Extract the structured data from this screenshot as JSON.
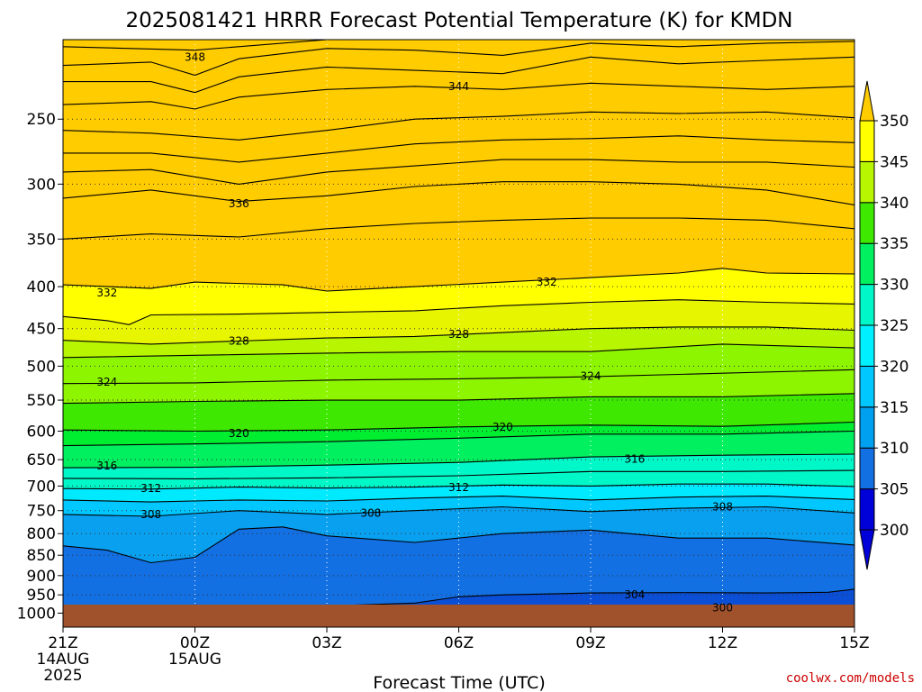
{
  "chart_data": {
    "type": "contour",
    "title": "2025081421 HRRR Forecast Potential Temperature (K) for KMDN",
    "xlabel": "Forecast Time (UTC)",
    "ylabel": "",
    "y_scale": "log",
    "ylim": [
      1040,
      200
    ],
    "x_ticks": [
      {
        "h": 0,
        "lines": [
          "21Z",
          "14AUG",
          "2025"
        ]
      },
      {
        "h": 3,
        "lines": [
          "00Z",
          "15AUG"
        ]
      },
      {
        "h": 6,
        "lines": [
          "03Z"
        ]
      },
      {
        "h": 9,
        "lines": [
          "06Z"
        ]
      },
      {
        "h": 12,
        "lines": [
          "09Z"
        ]
      },
      {
        "h": 15,
        "lines": [
          "12Z"
        ]
      },
      {
        "h": 18,
        "lines": [
          "15Z"
        ]
      }
    ],
    "y_ticks": [
      250,
      300,
      350,
      400,
      450,
      500,
      550,
      600,
      650,
      700,
      750,
      800,
      850,
      900,
      950,
      1000
    ],
    "colorbar": {
      "levels": [
        "300",
        "305",
        "310",
        "315",
        "320",
        "325",
        "330",
        "335",
        "340",
        "345",
        "350"
      ],
      "colors": [
        "#0000d8",
        "#0b4fd6",
        "#1370e3",
        "#0aa0f0",
        "#00c8ff",
        "#00eaff",
        "#00f7c8",
        "#00f060",
        "#00ee30",
        "#3ee800",
        "#8ef500",
        "#b8f500",
        "#e8f500",
        "#ffff00",
        "#ffcc00"
      ]
    },
    "contour_interval": 2,
    "contour_labels": [
      {
        "value": "348",
        "h": 3.0,
        "p": 210
      },
      {
        "value": "344",
        "h": 9.0,
        "p": 228
      },
      {
        "value": "336",
        "h": 4.0,
        "p": 317
      },
      {
        "value": "332",
        "h": 1.0,
        "p": 407
      },
      {
        "value": "332",
        "h": 11.0,
        "p": 395
      },
      {
        "value": "328",
        "h": 4.0,
        "p": 466
      },
      {
        "value": "328",
        "h": 9.0,
        "p": 457
      },
      {
        "value": "324",
        "h": 1.0,
        "p": 523
      },
      {
        "value": "324",
        "h": 12.0,
        "p": 514
      },
      {
        "value": "320",
        "h": 4.0,
        "p": 604
      },
      {
        "value": "320",
        "h": 10.0,
        "p": 593
      },
      {
        "value": "316",
        "h": 1.0,
        "p": 661
      },
      {
        "value": "316",
        "h": 13.0,
        "p": 649
      },
      {
        "value": "312",
        "h": 2.0,
        "p": 705
      },
      {
        "value": "312",
        "h": 9.0,
        "p": 703
      },
      {
        "value": "308",
        "h": 2.0,
        "p": 758
      },
      {
        "value": "308",
        "h": 7.0,
        "p": 755
      },
      {
        "value": "308",
        "h": 15.0,
        "p": 742
      },
      {
        "value": "304",
        "h": 13.0,
        "p": 950
      },
      {
        "value": "300",
        "h": 15.0,
        "p": 985
      }
    ],
    "contours": [
      {
        "t": 304,
        "pts": [
          [
            3.6,
            985
          ],
          [
            6,
            980
          ],
          [
            8,
            972
          ],
          [
            9,
            955
          ],
          [
            10,
            950
          ],
          [
            12,
            945
          ],
          [
            14,
            944
          ],
          [
            16,
            945
          ],
          [
            17.4,
            943
          ],
          [
            18,
            935
          ]
        ]
      },
      {
        "t": 306,
        "pts": [
          [
            0,
            828
          ],
          [
            1,
            838
          ],
          [
            2,
            868
          ],
          [
            3,
            855
          ],
          [
            4,
            790
          ],
          [
            5,
            785
          ],
          [
            6,
            805
          ],
          [
            8,
            820
          ],
          [
            10,
            800
          ],
          [
            12,
            792
          ],
          [
            14,
            810
          ],
          [
            16,
            810
          ],
          [
            18,
            826
          ]
        ]
      },
      {
        "t": 308,
        "pts": [
          [
            0,
            758
          ],
          [
            2,
            762
          ],
          [
            4,
            750
          ],
          [
            6,
            758
          ],
          [
            8,
            750
          ],
          [
            10,
            742
          ],
          [
            12,
            752
          ],
          [
            14,
            745
          ],
          [
            16,
            742
          ],
          [
            18,
            755
          ]
        ]
      },
      {
        "t": 310,
        "pts": [
          [
            0,
            728
          ],
          [
            2,
            732
          ],
          [
            4,
            728
          ],
          [
            6,
            730
          ],
          [
            8,
            724
          ],
          [
            10,
            720
          ],
          [
            12,
            728
          ],
          [
            14,
            722
          ],
          [
            16,
            720
          ],
          [
            18,
            727
          ]
        ]
      },
      {
        "t": 312,
        "pts": [
          [
            0,
            705
          ],
          [
            2,
            706
          ],
          [
            4,
            702
          ],
          [
            6,
            704
          ],
          [
            8,
            702
          ],
          [
            10,
            698
          ],
          [
            12,
            700
          ],
          [
            14,
            696
          ],
          [
            16,
            696
          ],
          [
            18,
            701
          ]
        ]
      },
      {
        "t": 314,
        "pts": [
          [
            0,
            685
          ],
          [
            3,
            686
          ],
          [
            6,
            684
          ],
          [
            9,
            680
          ],
          [
            12,
            672
          ],
          [
            15,
            672
          ],
          [
            18,
            670
          ]
        ]
      },
      {
        "t": 316,
        "pts": [
          [
            0,
            665
          ],
          [
            3,
            664
          ],
          [
            6,
            660
          ],
          [
            9,
            655
          ],
          [
            12,
            645
          ],
          [
            15,
            642
          ],
          [
            18,
            640
          ]
        ]
      },
      {
        "t": 318,
        "pts": [
          [
            0,
            625
          ],
          [
            3,
            622
          ],
          [
            6,
            618
          ],
          [
            9,
            612
          ],
          [
            12,
            605
          ],
          [
            15,
            605
          ],
          [
            18,
            600
          ]
        ]
      },
      {
        "t": 320,
        "pts": [
          [
            0,
            598
          ],
          [
            3,
            600
          ],
          [
            6,
            598
          ],
          [
            9,
            593
          ],
          [
            12,
            590
          ],
          [
            15,
            592
          ],
          [
            18,
            585
          ]
        ]
      },
      {
        "t": 322,
        "pts": [
          [
            0,
            555
          ],
          [
            3,
            552
          ],
          [
            6,
            550
          ],
          [
            9,
            550
          ],
          [
            12,
            545
          ],
          [
            15,
            545
          ],
          [
            18,
            540
          ]
        ]
      },
      {
        "t": 324,
        "pts": [
          [
            0,
            525
          ],
          [
            3,
            524
          ],
          [
            6,
            520
          ],
          [
            9,
            518
          ],
          [
            12,
            515
          ],
          [
            15,
            510
          ],
          [
            18,
            505
          ]
        ]
      },
      {
        "t": 326,
        "pts": [
          [
            0,
            488
          ],
          [
            3,
            485
          ],
          [
            6,
            482
          ],
          [
            9,
            480
          ],
          [
            12,
            480
          ],
          [
            15,
            470
          ],
          [
            18,
            475
          ]
        ]
      },
      {
        "t": 328,
        "pts": [
          [
            0,
            465
          ],
          [
            2,
            470
          ],
          [
            4,
            466
          ],
          [
            6,
            462
          ],
          [
            8,
            460
          ],
          [
            10,
            455
          ],
          [
            12,
            450
          ],
          [
            14,
            448
          ],
          [
            16,
            448
          ],
          [
            18,
            452
          ]
        ]
      },
      {
        "t": 330,
        "pts": [
          [
            0,
            435
          ],
          [
            1,
            440
          ],
          [
            1.5,
            445
          ],
          [
            2,
            433
          ],
          [
            4,
            432
          ],
          [
            6,
            430
          ],
          [
            8,
            428
          ],
          [
            10,
            422
          ],
          [
            12,
            418
          ],
          [
            14,
            415
          ],
          [
            16,
            418
          ],
          [
            18,
            420
          ]
        ]
      },
      {
        "t": 332,
        "pts": [
          [
            0,
            398
          ],
          [
            2,
            402
          ],
          [
            3,
            395
          ],
          [
            5,
            398
          ],
          [
            6,
            405
          ],
          [
            8,
            400
          ],
          [
            10,
            395
          ],
          [
            12,
            390
          ],
          [
            14,
            385
          ],
          [
            15,
            380
          ],
          [
            16,
            385
          ],
          [
            18,
            386
          ]
        ]
      },
      {
        "t": 334,
        "pts": [
          [
            0,
            350
          ],
          [
            2,
            345
          ],
          [
            4,
            348
          ],
          [
            6,
            340
          ],
          [
            8,
            335
          ],
          [
            10,
            332
          ],
          [
            12,
            330
          ],
          [
            14,
            330
          ],
          [
            16,
            332
          ],
          [
            18,
            340
          ]
        ]
      },
      {
        "t": 336,
        "pts": [
          [
            0,
            312
          ],
          [
            2,
            305
          ],
          [
            4,
            315
          ],
          [
            6,
            310
          ],
          [
            8,
            302
          ],
          [
            10,
            298
          ],
          [
            12,
            298
          ],
          [
            14,
            300
          ],
          [
            16,
            305
          ],
          [
            18,
            318
          ]
        ]
      },
      {
        "t": 338,
        "pts": [
          [
            0,
            290
          ],
          [
            2,
            288
          ],
          [
            4,
            300
          ],
          [
            6,
            290
          ],
          [
            8,
            285
          ],
          [
            10,
            280
          ],
          [
            12,
            280
          ],
          [
            14,
            282
          ],
          [
            16,
            282
          ],
          [
            18,
            286
          ]
        ]
      },
      {
        "t": 340,
        "pts": [
          [
            0,
            275
          ],
          [
            2,
            275
          ],
          [
            4,
            282
          ],
          [
            6,
            275
          ],
          [
            8,
            268
          ],
          [
            10,
            265
          ],
          [
            12,
            264
          ],
          [
            14,
            262
          ],
          [
            16,
            265
          ],
          [
            18,
            267
          ]
        ]
      },
      {
        "t": 342,
        "pts": [
          [
            0,
            258
          ],
          [
            2,
            260
          ],
          [
            4,
            265
          ],
          [
            6,
            258
          ],
          [
            8,
            250
          ],
          [
            10,
            248
          ],
          [
            12,
            245
          ],
          [
            14,
            246
          ],
          [
            16,
            245
          ],
          [
            18,
            249
          ]
        ]
      },
      {
        "t": 344,
        "pts": [
          [
            0,
            240
          ],
          [
            2,
            238
          ],
          [
            3,
            243
          ],
          [
            4,
            235
          ],
          [
            6,
            230
          ],
          [
            8,
            228
          ],
          [
            10,
            230
          ],
          [
            12,
            226
          ],
          [
            14,
            228
          ],
          [
            16,
            230
          ],
          [
            18,
            228
          ]
        ]
      },
      {
        "t": 346,
        "pts": [
          [
            0,
            225
          ],
          [
            2,
            225
          ],
          [
            3,
            232
          ],
          [
            4,
            222
          ],
          [
            6,
            216
          ],
          [
            8,
            218
          ],
          [
            10,
            220
          ],
          [
            12,
            210
          ],
          [
            14,
            214
          ],
          [
            16,
            212
          ],
          [
            18,
            210
          ]
        ]
      },
      {
        "t": 348,
        "pts": [
          [
            0,
            215
          ],
          [
            2,
            213
          ],
          [
            3,
            221
          ],
          [
            4,
            211
          ],
          [
            6,
            205
          ],
          [
            8,
            206
          ],
          [
            10,
            209
          ],
          [
            12,
            202
          ],
          [
            14,
            204
          ],
          [
            16,
            202
          ],
          [
            18,
            201
          ]
        ]
      },
      {
        "t": 350,
        "pts": [
          [
            0,
            204
          ],
          [
            3,
            206
          ],
          [
            6,
            200
          ],
          [
            10,
            199
          ],
          [
            14,
            198
          ],
          [
            18,
            198
          ]
        ]
      }
    ]
  },
  "credit": "coolwx.com/models"
}
